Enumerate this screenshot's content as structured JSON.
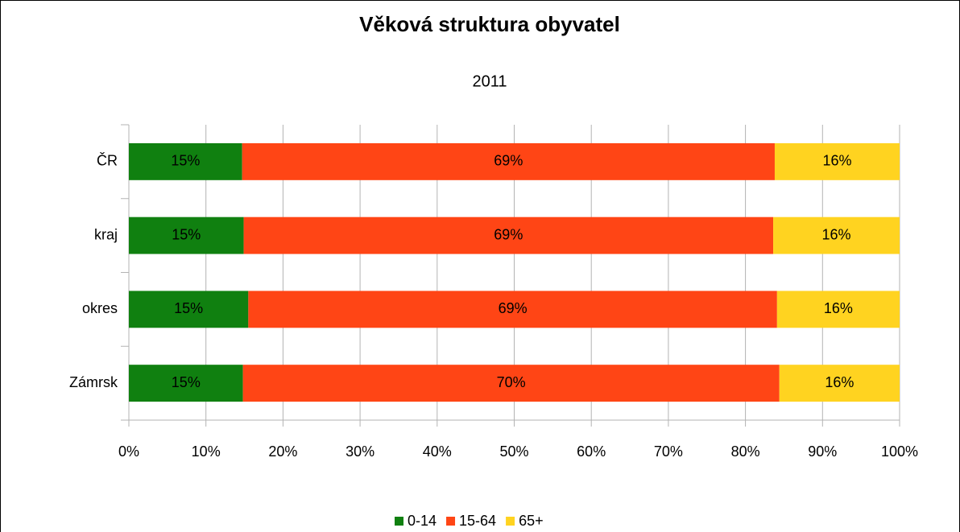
{
  "chart_data": {
    "type": "stacked_barh",
    "title": "Věková struktura obyvatel",
    "subtitle": "2011",
    "categories": [
      "ČR",
      "kraj",
      "okres",
      "Zámrsk"
    ],
    "series": [
      {
        "name": "0-14",
        "color": "#108010",
        "values": [
          14.7,
          14.9,
          15.5,
          14.8
        ],
        "value_labels": [
          "15%",
          "15%",
          "15%",
          "15%"
        ]
      },
      {
        "name": "15-64",
        "color": "#ff4515",
        "values": [
          69.1,
          68.7,
          68.6,
          69.6
        ],
        "value_labels": [
          "69%",
          "69%",
          "69%",
          "70%"
        ]
      },
      {
        "name": "65+",
        "color": "#ffd320",
        "values": [
          16.2,
          16.4,
          15.9,
          15.6
        ],
        "value_labels": [
          "16%",
          "16%",
          "16%",
          "16%"
        ]
      }
    ],
    "xlim": [
      0,
      100
    ],
    "xticks": [
      {
        "value": 0,
        "label": "0%"
      },
      {
        "value": 10,
        "label": "10%"
      },
      {
        "value": 20,
        "label": "20%"
      },
      {
        "value": 30,
        "label": "30%"
      },
      {
        "value": 40,
        "label": "40%"
      },
      {
        "value": 50,
        "label": "50%"
      },
      {
        "value": 60,
        "label": "60%"
      },
      {
        "value": 70,
        "label": "70%"
      },
      {
        "value": 80,
        "label": "80%"
      },
      {
        "value": 90,
        "label": "90%"
      },
      {
        "value": 100,
        "label": "100%"
      }
    ],
    "grid": true,
    "legend": "bottom"
  }
}
